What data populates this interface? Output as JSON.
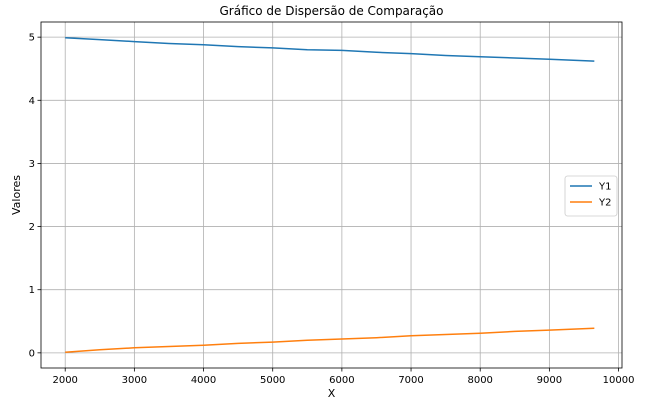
{
  "chart_data": {
    "type": "line",
    "title": "Gráfico de Dispersão de Comparação",
    "xlabel": "X",
    "ylabel": "Valores",
    "xlim": [
      1650,
      10050
    ],
    "ylim": [
      -0.24,
      5.24
    ],
    "xticks": [
      2000,
      3000,
      4000,
      5000,
      6000,
      7000,
      8000,
      9000,
      10000
    ],
    "yticks": [
      0,
      1,
      2,
      3,
      4,
      5
    ],
    "grid": true,
    "legend_position": "center-right",
    "x": [
      2000,
      2500,
      3000,
      3500,
      4000,
      4500,
      5000,
      5500,
      6000,
      6500,
      7000,
      7500,
      8000,
      8500,
      9000,
      9650
    ],
    "series": [
      {
        "name": "Y1",
        "color": "#1f77b4",
        "values": [
          4.99,
          4.96,
          4.93,
          4.9,
          4.88,
          4.85,
          4.83,
          4.8,
          4.79,
          4.76,
          4.74,
          4.71,
          4.69,
          4.67,
          4.65,
          4.62
        ]
      },
      {
        "name": "Y2",
        "color": "#ff7f0e",
        "values": [
          0.01,
          0.05,
          0.08,
          0.1,
          0.12,
          0.15,
          0.17,
          0.2,
          0.22,
          0.24,
          0.27,
          0.29,
          0.31,
          0.34,
          0.36,
          0.39
        ]
      }
    ]
  }
}
